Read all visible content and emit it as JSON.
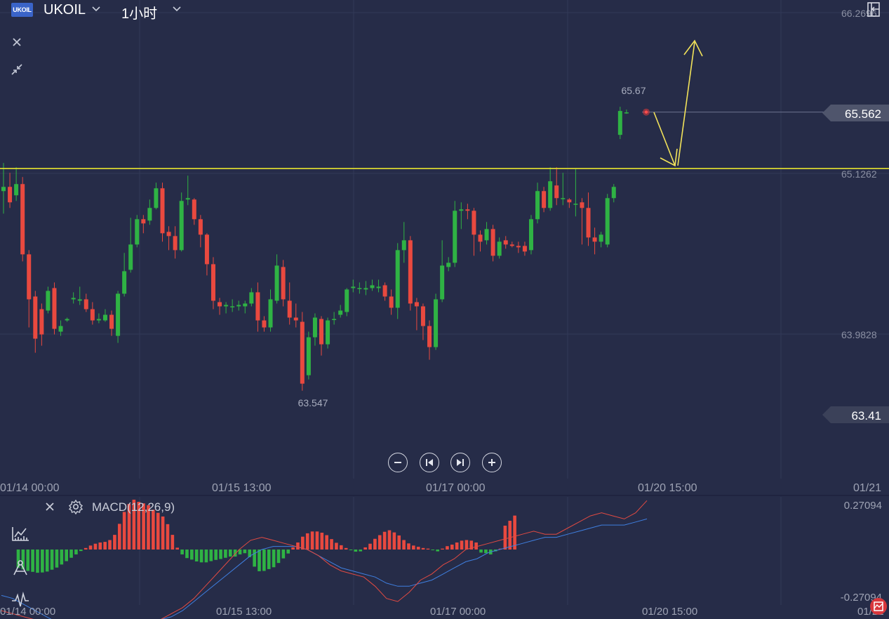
{
  "header": {
    "logo_text": "UKOIL",
    "symbol": "UKOIL",
    "interval": "1小时"
  },
  "macd": {
    "label": "MACD(12,26,9)",
    "axis_top": "0.27094",
    "axis_bottom": "-0.27094"
  },
  "price_axis": {
    "labels": [
      "66.2696",
      "65.1262",
      "63.9828"
    ],
    "current_price": "65.562",
    "low_marker": "63.41"
  },
  "annotations": {
    "high_label": "65.67",
    "low_label": "63.547"
  },
  "time_axis": {
    "labels": [
      "01/14 00:00",
      "01/15 13:00",
      "01/17 00:00",
      "01/20 15:00",
      "01/21"
    ]
  },
  "colors": {
    "background": "#262c48",
    "up": "#2fb344",
    "down": "#e9493f",
    "level_line": "#e6e22e",
    "arrow": "#f2e35a",
    "macd_line": "#e14a42",
    "signal_line": "#3f7fe0",
    "grid": "#323a58",
    "axis_text": "#8b90a3"
  },
  "icons": {
    "close": "close-icon",
    "collapse": "collapse-icon",
    "zoom_out": "zoom-out-icon",
    "prev": "skip-back-icon",
    "next": "skip-forward-icon",
    "zoom_in": "zoom-in-icon",
    "settings": "gear-icon",
    "indicators": "indicator-icon",
    "drawing": "drawing-tool-icon",
    "signal": "signal-icon",
    "panel": "panel-toggle-icon",
    "screenshot": "screenshot-icon"
  },
  "chart_data": {
    "type": "candlestick",
    "interval": "1小时",
    "symbol": "UKOIL",
    "ylim": [
      63.25,
      66.28
    ],
    "level_line": 65.16,
    "current_price": 65.562,
    "high_marker": 65.67,
    "low_marker": 63.547,
    "price_gridlines": [
      66.2696,
      65.1262,
      63.9828
    ],
    "time_ticks": [
      "01/14 00:00",
      "01/15 13:00",
      "01/17 00:00",
      "01/20 15:00",
      "01/21"
    ],
    "candles": [
      [
        65.0,
        65.03,
        64.84,
        65.2
      ],
      [
        65.03,
        64.92,
        64.88,
        65.13
      ],
      [
        64.97,
        65.05,
        64.93,
        65.17
      ],
      [
        65.05,
        64.55,
        64.5,
        65.1
      ],
      [
        64.55,
        64.23,
        64.03,
        64.58
      ],
      [
        64.25,
        63.95,
        63.85,
        64.29
      ],
      [
        64.16,
        63.98,
        63.9,
        64.2
      ],
      [
        64.15,
        64.29,
        64.13,
        64.32
      ],
      [
        64.31,
        64.02,
        63.98,
        64.35
      ],
      [
        64.0,
        64.04,
        63.97,
        64.08
      ],
      [
        64.08,
        64.09,
        64.07,
        64.1
      ],
      [
        64.23,
        64.24,
        64.2,
        64.28
      ],
      [
        64.22,
        64.23,
        64.19,
        64.32
      ],
      [
        64.23,
        64.16,
        64.14,
        64.27
      ],
      [
        64.16,
        64.08,
        64.05,
        64.21
      ],
      [
        64.08,
        64.09,
        64.06,
        64.13
      ],
      [
        64.08,
        64.12,
        64.07,
        64.16
      ],
      [
        64.12,
        64.02,
        63.97,
        64.15
      ],
      [
        63.97,
        64.27,
        63.92,
        64.29
      ],
      [
        64.27,
        64.43,
        64.25,
        64.56
      ],
      [
        64.44,
        64.62,
        64.42,
        64.81
      ],
      [
        64.62,
        64.8,
        64.6,
        64.83
      ],
      [
        64.8,
        64.77,
        64.7,
        64.83
      ],
      [
        64.79,
        64.88,
        64.76,
        64.94
      ],
      [
        64.88,
        65.02,
        64.87,
        65.06
      ],
      [
        65.02,
        64.7,
        64.64,
        65.06
      ],
      [
        64.71,
        64.68,
        64.58,
        64.75
      ],
      [
        64.68,
        64.58,
        64.52,
        64.75
      ],
      [
        64.58,
        64.93,
        64.57,
        64.99
      ],
      [
        64.94,
        64.95,
        64.9,
        65.11
      ],
      [
        64.94,
        64.8,
        64.76,
        64.95
      ],
      [
        64.8,
        64.69,
        64.6,
        64.83
      ],
      [
        64.69,
        64.48,
        64.4,
        64.7
      ],
      [
        64.48,
        64.22,
        64.16,
        64.53
      ],
      [
        64.21,
        64.18,
        64.12,
        64.24
      ],
      [
        64.18,
        64.19,
        64.13,
        64.21
      ],
      [
        64.18,
        64.18,
        64.14,
        64.23
      ],
      [
        64.18,
        64.19,
        64.15,
        64.22
      ],
      [
        64.18,
        64.2,
        64.13,
        64.22
      ],
      [
        64.2,
        64.28,
        64.18,
        64.31
      ],
      [
        64.28,
        64.08,
        64.0,
        64.35
      ],
      [
        64.08,
        64.03,
        64.0,
        64.11
      ],
      [
        64.03,
        64.23,
        64.0,
        64.3
      ],
      [
        64.22,
        64.47,
        64.2,
        64.55
      ],
      [
        64.46,
        64.23,
        64.18,
        64.51
      ],
      [
        64.22,
        64.1,
        64.05,
        64.35
      ],
      [
        64.1,
        64.08,
        64.03,
        64.2
      ],
      [
        64.07,
        63.63,
        63.58,
        64.14
      ],
      [
        63.69,
        63.96,
        63.66,
        64.0
      ],
      [
        63.96,
        64.1,
        63.9,
        64.13
      ],
      [
        64.09,
        63.91,
        63.83,
        64.11
      ],
      [
        63.91,
        64.08,
        63.88,
        64.1
      ],
      [
        64.09,
        64.09,
        64.05,
        64.14
      ],
      [
        64.12,
        64.15,
        64.1,
        64.19
      ],
      [
        64.14,
        64.3,
        64.11,
        64.31
      ],
      [
        64.31,
        64.32,
        64.28,
        64.37
      ],
      [
        64.31,
        64.31,
        64.27,
        64.35
      ],
      [
        64.3,
        64.31,
        64.26,
        64.36
      ],
      [
        64.31,
        64.33,
        64.29,
        64.37
      ],
      [
        64.31,
        64.32,
        64.28,
        64.37
      ],
      [
        64.33,
        64.25,
        64.22,
        64.35
      ],
      [
        64.25,
        64.17,
        64.12,
        64.3
      ],
      [
        64.17,
        64.58,
        64.09,
        64.63
      ],
      [
        64.58,
        64.65,
        64.49,
        64.78
      ],
      [
        64.65,
        64.2,
        64.15,
        64.68
      ],
      [
        64.21,
        64.18,
        64.01,
        64.24
      ],
      [
        64.18,
        64.04,
        63.94,
        64.2
      ],
      [
        64.04,
        63.89,
        63.8,
        64.08
      ],
      [
        63.89,
        64.23,
        63.87,
        64.27
      ],
      [
        64.23,
        64.47,
        64.21,
        64.65
      ],
      [
        64.46,
        64.49,
        64.43,
        64.53
      ],
      [
        64.49,
        64.86,
        64.46,
        64.93
      ],
      [
        64.86,
        64.87,
        64.73,
        64.92
      ],
      [
        64.87,
        64.86,
        64.8,
        64.91
      ],
      [
        64.86,
        64.69,
        64.54,
        64.88
      ],
      [
        64.69,
        64.64,
        64.57,
        64.72
      ],
      [
        64.65,
        64.73,
        64.62,
        64.78
      ],
      [
        64.73,
        64.54,
        64.5,
        64.76
      ],
      [
        64.54,
        64.64,
        64.52,
        64.67
      ],
      [
        64.65,
        64.62,
        64.59,
        64.68
      ],
      [
        64.62,
        64.61,
        64.6,
        64.64
      ],
      [
        64.61,
        64.6,
        64.56,
        64.64
      ],
      [
        64.61,
        64.57,
        64.54,
        64.64
      ],
      [
        64.58,
        64.8,
        64.55,
        64.83
      ],
      [
        64.8,
        65.0,
        64.77,
        65.06
      ],
      [
        65.0,
        64.88,
        64.85,
        65.03
      ],
      [
        64.88,
        65.07,
        64.86,
        65.17
      ],
      [
        65.04,
        64.95,
        64.9,
        65.17
      ],
      [
        64.95,
        64.95,
        64.9,
        65.13
      ],
      [
        64.94,
        64.92,
        64.88,
        64.95
      ],
      [
        64.91,
        64.91,
        64.82,
        65.16
      ],
      [
        64.92,
        64.88,
        64.62,
        64.95
      ],
      [
        64.88,
        64.67,
        64.61,
        64.99
      ],
      [
        64.67,
        64.64,
        64.55,
        64.74
      ],
      [
        64.64,
        64.69,
        64.6,
        64.71
      ],
      [
        64.62,
        64.95,
        64.6,
        64.98
      ],
      [
        64.95,
        65.03,
        64.92,
        65.05
      ],
      [
        65.4,
        65.57,
        65.37,
        65.6
      ],
      [
        65.56,
        65.56,
        65.55,
        65.58
      ]
    ],
    "macd_histogram": [
      -0.06,
      -0.065,
      -0.07,
      -0.073,
      -0.076,
      -0.075,
      -0.072,
      -0.066,
      -0.059,
      -0.049,
      -0.038,
      -0.027,
      -0.016,
      -0.005,
      0.005,
      0.013,
      0.019,
      0.023,
      0.025,
      0.031,
      0.048,
      0.084,
      0.123,
      0.149,
      0.163,
      0.156,
      0.151,
      0.145,
      0.13,
      0.12,
      0.108,
      0.083,
      0.048,
      0.006,
      -0.016,
      -0.028,
      -0.033,
      -0.039,
      -0.042,
      -0.042,
      -0.038,
      -0.034,
      -0.031,
      -0.027,
      -0.023,
      -0.023,
      -0.016,
      -0.012,
      -0.025,
      -0.056,
      -0.071,
      -0.07,
      -0.064,
      -0.058,
      -0.044,
      -0.029,
      -0.013,
      0.007,
      0.023,
      0.042,
      0.053,
      0.059,
      0.059,
      0.055,
      0.047,
      0.034,
      0.022,
      0.014,
      0.005,
      -0.001,
      -0.007,
      -0.006,
      0.007,
      0.019,
      0.035,
      0.047,
      0.058,
      0.063,
      0.056,
      0.046,
      0.031,
      0.02,
      0.013,
      0.009,
      0.005,
      0.003,
      -0.002,
      -0.006,
      0.003,
      0.011,
      0.016,
      0.023,
      0.029,
      0.031,
      0.029,
      0.023,
      -0.01,
      -0.012,
      -0.016,
      -0.006,
      0.003,
      0.078,
      0.094,
      0.111
    ],
    "macd_line": [
      -0.2,
      -0.21,
      -0.22,
      -0.23,
      -0.24,
      -0.25,
      -0.26,
      -0.27,
      -0.28,
      -0.28,
      -0.27,
      -0.26,
      -0.25,
      -0.24,
      -0.23,
      -0.21,
      -0.19,
      -0.16,
      -0.12,
      -0.08,
      -0.04,
      0.0,
      0.03,
      0.04,
      0.03,
      0.02,
      0.01,
      0.0,
      -0.02,
      -0.05,
      -0.07,
      -0.08,
      -0.09,
      -0.12,
      -0.16,
      -0.17,
      -0.14,
      -0.1,
      -0.08,
      -0.05,
      -0.03,
      0.0,
      0.01,
      0.02,
      0.03,
      0.04,
      0.05,
      0.06,
      0.05,
      0.05,
      0.07,
      0.09,
      0.11,
      0.12,
      0.11,
      0.1,
      0.12,
      0.16
    ],
    "signal_line": [
      -0.15,
      -0.16,
      -0.18,
      -0.2,
      -0.22,
      -0.24,
      -0.25,
      -0.26,
      -0.27,
      -0.27,
      -0.27,
      -0.26,
      -0.25,
      -0.24,
      -0.23,
      -0.22,
      -0.2,
      -0.17,
      -0.14,
      -0.11,
      -0.08,
      -0.05,
      -0.02,
      0.0,
      0.01,
      0.01,
      0.01,
      0.0,
      -0.02,
      -0.04,
      -0.06,
      -0.07,
      -0.08,
      -0.09,
      -0.11,
      -0.12,
      -0.12,
      -0.11,
      -0.1,
      -0.08,
      -0.06,
      -0.04,
      -0.03,
      -0.01,
      0.0,
      0.01,
      0.02,
      0.03,
      0.04,
      0.04,
      0.05,
      0.06,
      0.07,
      0.08,
      0.08,
      0.08,
      0.09,
      0.1
    ]
  }
}
